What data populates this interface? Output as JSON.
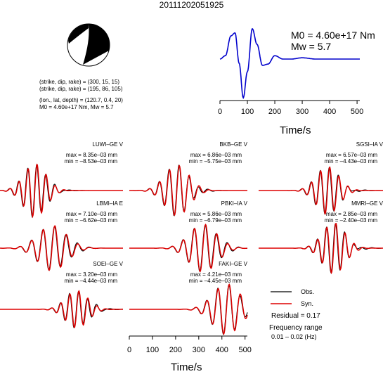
{
  "title": "20111202051925",
  "beachball_text": {
    "plane1": "(strike, dip, rake) = (300, 15, 15)",
    "plane2": "(strike, dip, rake) = (195, 86, 105)",
    "location": "(lon., lat, depth) = (120.7, 0.4, 20)",
    "moment": "M0 = 4.60e+17 Nm, Mw = 5.7"
  },
  "stf": {
    "m0_label": "M0 = 4.60e+17 Nm",
    "mw_label": "Mw = 5.7",
    "xlabel": "Time/s",
    "xticks": [
      "0",
      "100",
      "200",
      "300",
      "400",
      "500"
    ]
  },
  "bottom_axis": {
    "xlabel": "Time/s",
    "xticks": [
      "0",
      "100",
      "200",
      "300",
      "400",
      "500"
    ]
  },
  "legend": {
    "obs": "Obs.",
    "syn": "Syn.",
    "residual": "Residual = 0.17",
    "freq_title": "Frequency range",
    "freq_value": "0.01 – 0.02 (Hz)"
  },
  "colors": {
    "stf_line": "#0000cc",
    "obs_line": "#000000",
    "syn_line": "#dd0000",
    "beachball_fill": "#000000"
  },
  "chart_data": [
    {
      "type": "line",
      "name": "source_time_function",
      "x": [
        0,
        20,
        40,
        55,
        70,
        85,
        100,
        118,
        135,
        155,
        175,
        200,
        230,
        260,
        300,
        350,
        400,
        450,
        500
      ],
      "y": [
        0,
        0.08,
        0.55,
        0.62,
        -0.1,
        -0.92,
        -0.3,
        0.72,
        0.35,
        -0.15,
        -0.12,
        0.08,
        0.0,
        0.0,
        0.03,
        0.0,
        0.0,
        0.0,
        0.0
      ],
      "xlim": [
        0,
        510
      ]
    },
    {
      "type": "line",
      "stations": [
        {
          "name": "LUWI–GE V",
          "max": "max = 8.35e–03 mm",
          "min": "min = –8.53e–03 mm",
          "shape": 1
        },
        {
          "name": "BKB–GE V",
          "max": "max = 6.86e–03 mm",
          "min": "min = –5.75e–03 mm",
          "shape": 2
        },
        {
          "name": "SGSI–IA V",
          "max": "max = 6.57e–03 mm",
          "min": "min = –4.43e–03 mm",
          "shape": 3
        },
        {
          "name": "LBMI–IA E",
          "max": "max = 7.10e–03 mm",
          "min": "min = –6.62e–03 mm",
          "shape": 4
        },
        {
          "name": "PBKI–IA V",
          "max": "max = 5.86e–03 mm",
          "min": "min = –6.79e–03 mm",
          "shape": 5
        },
        {
          "name": "MMRI–GE V",
          "max": "max = 2.85e–03 mm",
          "min": "min = –2.40e–03 mm",
          "shape": 6
        },
        {
          "name": "SOEI–GE V",
          "max": "max = 3.20e–03 mm",
          "min": "min = –4.44e–03 mm",
          "shape": 7
        },
        {
          "name": "FAKI–GE V",
          "max": "max = 4.21e–03 mm",
          "min": "min = –4.45e–03 mm",
          "shape": 8
        }
      ]
    }
  ]
}
